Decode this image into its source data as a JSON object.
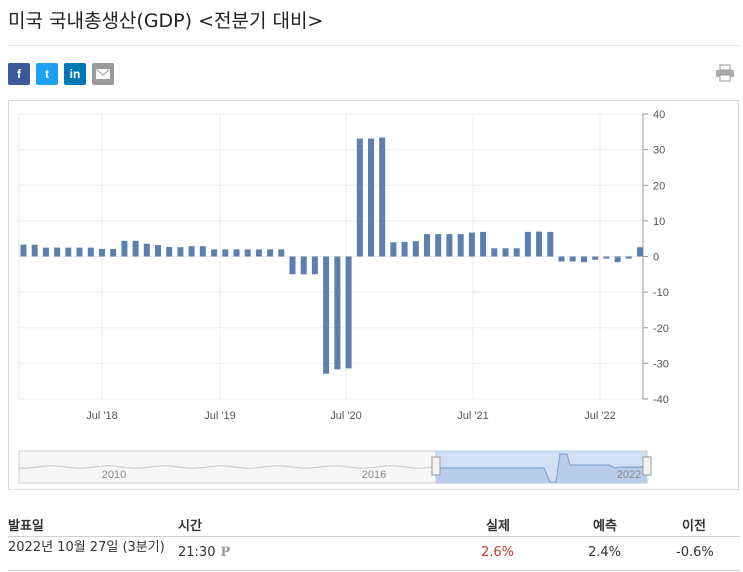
{
  "header": {
    "title": "미국 국내총생산(GDP) <전분기 대비>"
  },
  "share": {
    "facebook_icon": "f",
    "twitter_icon": "t",
    "linkedin_icon": "in",
    "email_icon": "envelope-icon",
    "print_icon": "printer-icon"
  },
  "colors": {
    "bar": "#5b7fae",
    "navigator_fill": "#cfe0f5",
    "navigator_line": "#7aa0cc"
  },
  "chart_data": {
    "type": "bar",
    "ylim": [
      -40,
      40
    ],
    "y_ticks": [
      40,
      30,
      20,
      10,
      0,
      -10,
      -20,
      -30,
      -40
    ],
    "x_tick_labels": [
      "Jul '18",
      "Jul '19",
      "Jul '20",
      "Jul '21",
      "Jul '22"
    ],
    "grid": true,
    "series": [
      {
        "values": [
          3.3,
          3.3,
          2.5,
          2.5,
          2.5,
          2.5,
          2.5,
          2.1,
          2.1,
          4.4,
          4.4,
          3.6,
          3.2,
          2.7,
          2.6,
          2.9,
          2.9,
          2.0,
          2.0,
          2.0,
          2.0,
          2.0,
          2.0,
          2.0,
          -5.0,
          -5.0,
          -5.0,
          -32.9,
          -31.7,
          -31.4,
          33.1,
          33.1,
          33.4,
          4.0,
          4.1,
          4.3,
          6.3,
          6.3,
          6.3,
          6.3,
          6.7,
          6.9,
          2.3,
          2.3,
          2.3,
          6.9,
          7.0,
          6.9,
          -1.4,
          -1.4,
          -1.6,
          -0.9,
          -0.6,
          -1.6,
          -0.6,
          2.6
        ]
      }
    ],
    "navigator": {
      "tick_labels": [
        "2010",
        "2016",
        "2022"
      ]
    }
  },
  "table": {
    "headers": [
      "발표일",
      "시간",
      "실제",
      "예측",
      "이전"
    ],
    "rows": [
      {
        "date": "2022년 10월 27일 (3분기)",
        "time": "21:30",
        "flag": "P",
        "actual": "2.6%",
        "forecast": "2.4%",
        "previous": "-0.6%"
      }
    ]
  }
}
